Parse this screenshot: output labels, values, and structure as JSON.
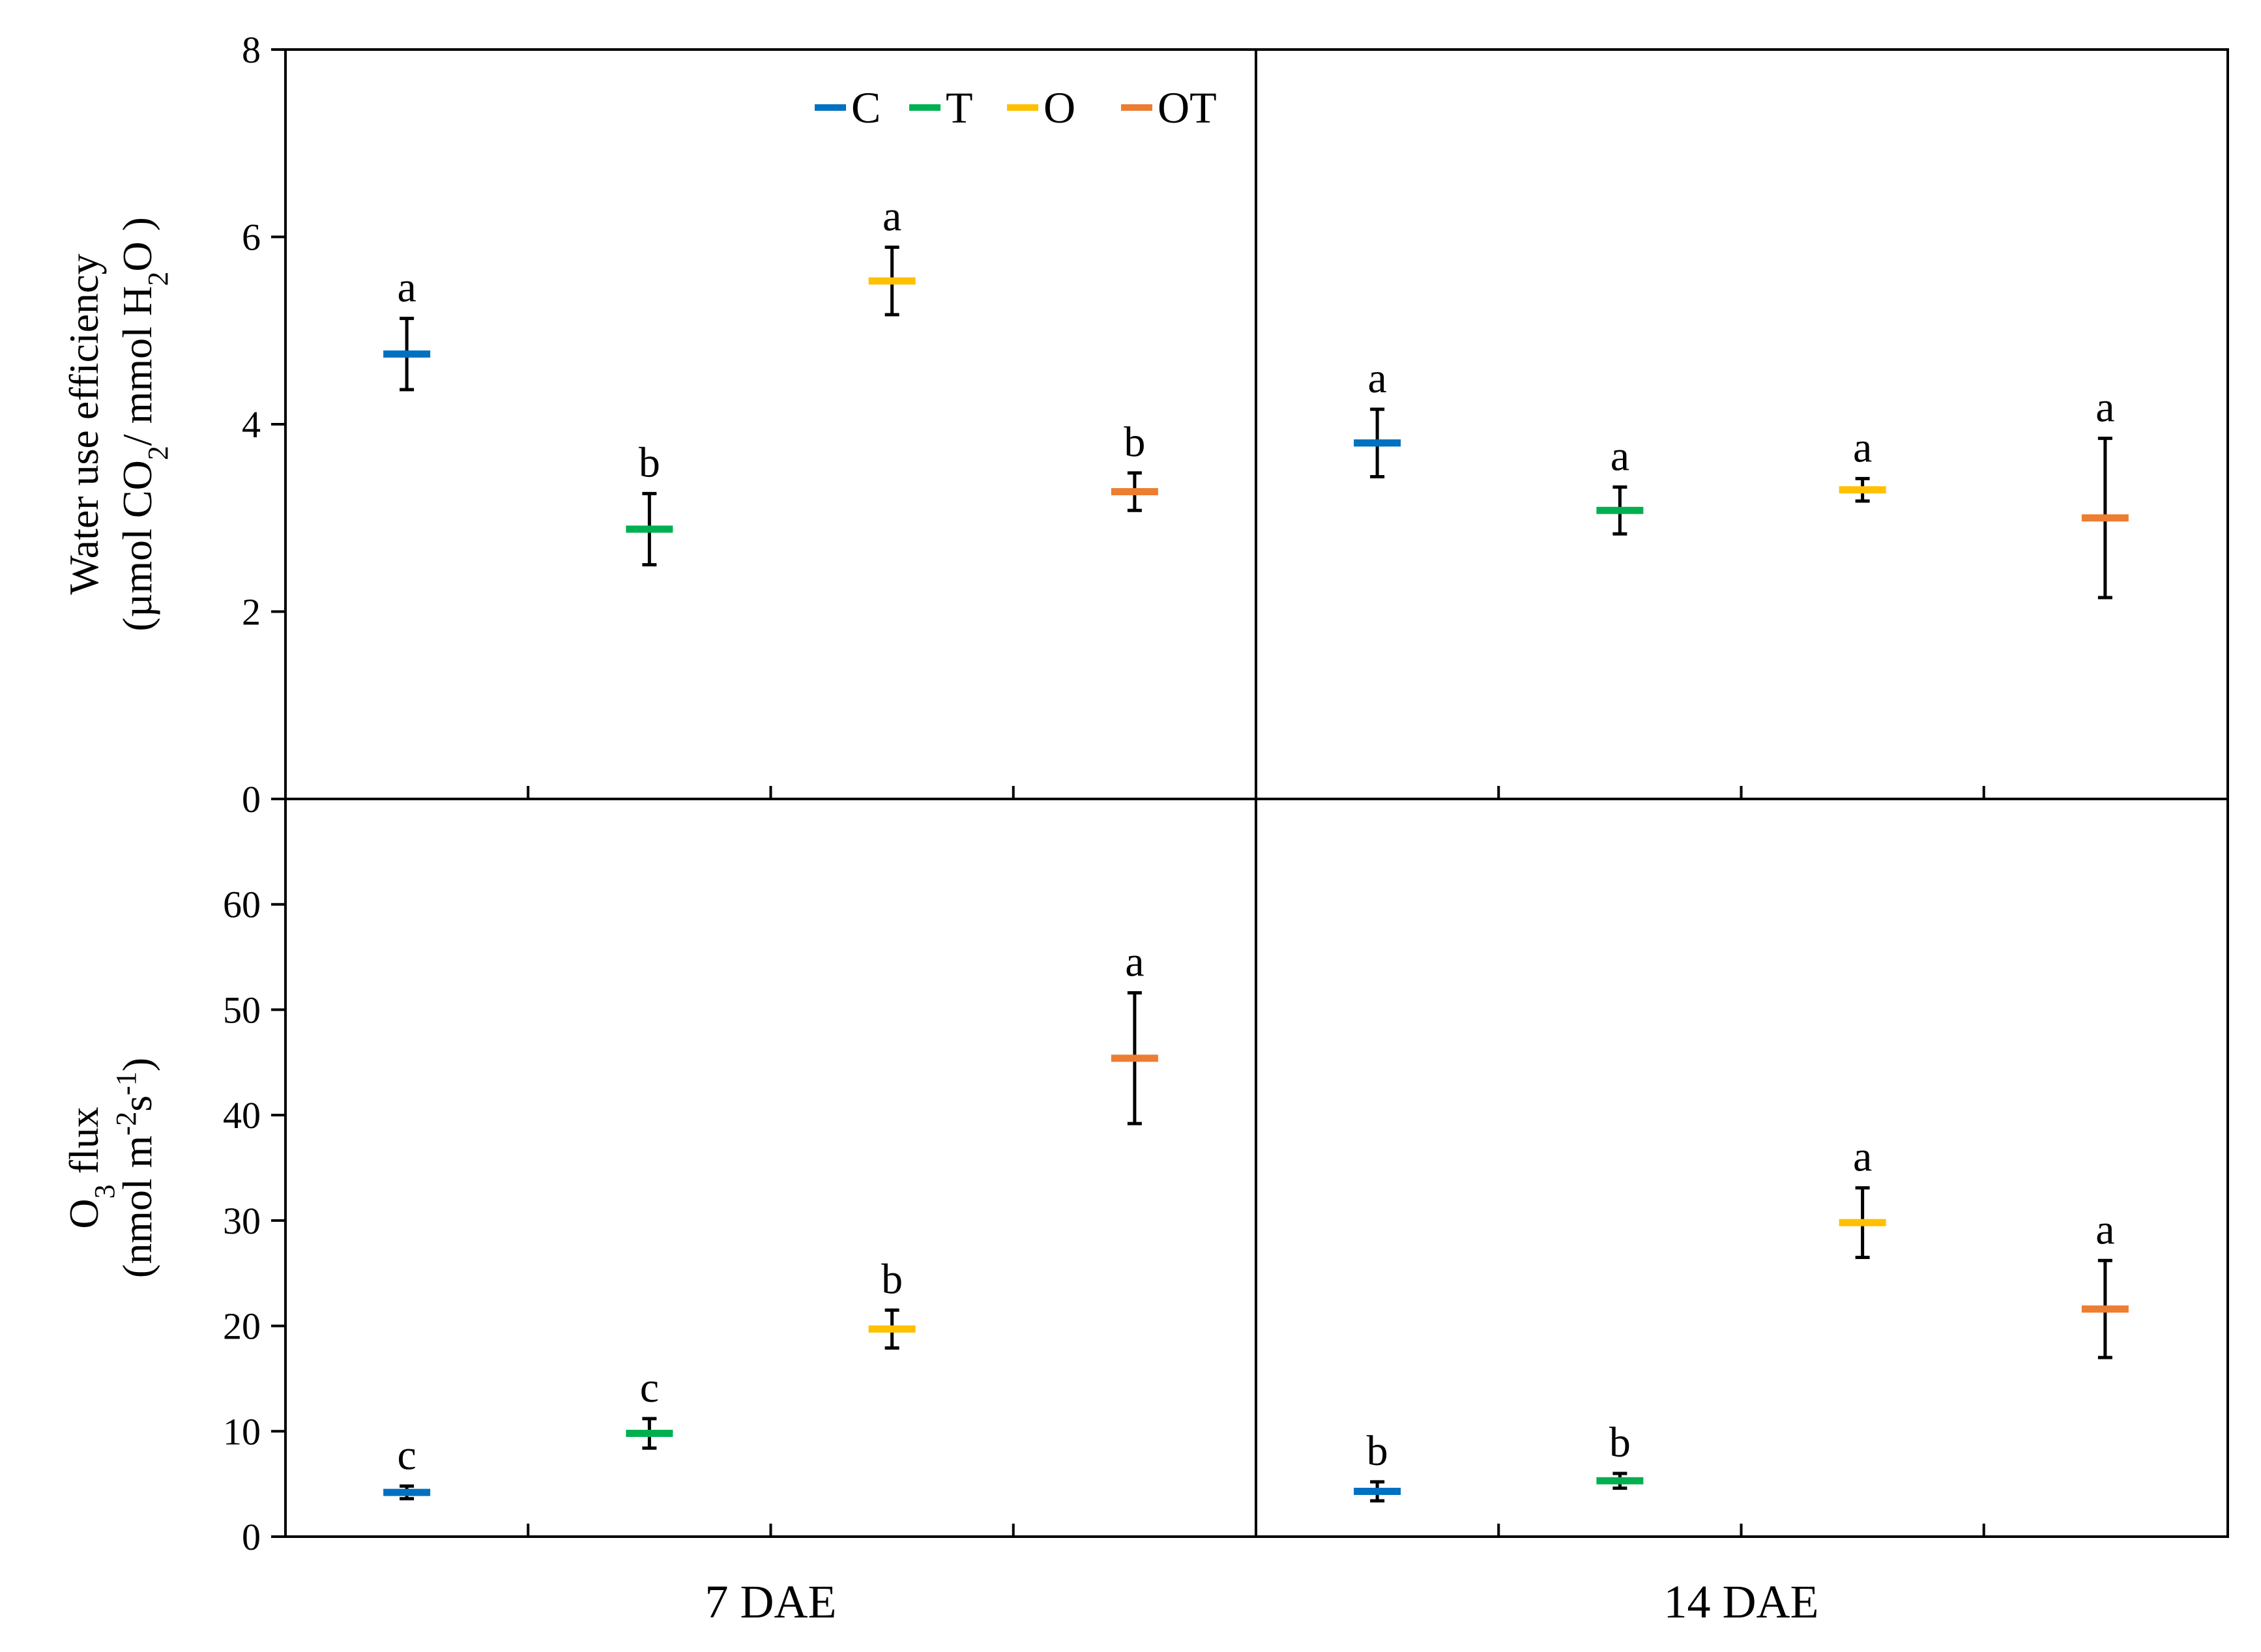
{
  "colors": {
    "C": "#0070C0",
    "T": "#00B050",
    "O": "#FFC000",
    "OT": "#ED7D31",
    "axis": "#000000",
    "error": "#000000"
  },
  "legend": [
    {
      "key": "C",
      "label": "C"
    },
    {
      "key": "T",
      "label": "T"
    },
    {
      "key": "O",
      "label": "O"
    },
    {
      "key": "OT",
      "label": "OT"
    }
  ],
  "x_categories": [
    "7 DAE",
    "14 DAE"
  ],
  "chart_data": [
    {
      "type": "scatter",
      "ylabel_lines": [
        [
          {
            "t": "Water use efficiency"
          }
        ],
        [
          {
            "t": "(µmol CO"
          },
          {
            "t": "2",
            "sub": true
          },
          {
            "t": "/ mmol H"
          },
          {
            "t": "2",
            "sub": true
          },
          {
            "t": "O )"
          }
        ]
      ],
      "ylim": [
        0,
        8
      ],
      "yticks": [
        0,
        2,
        4,
        6,
        8
      ],
      "ytick_labels": [
        "0",
        "2",
        "4",
        "6",
        "8"
      ],
      "groups": [
        "7 DAE",
        "14 DAE"
      ],
      "series": [
        {
          "name": "C",
          "points": [
            {
              "y": 4.75,
              "err": 0.38,
              "sig": "a"
            },
            {
              "y": 3.8,
              "err": 0.36,
              "sig": "a"
            }
          ]
        },
        {
          "name": "T",
          "points": [
            {
              "y": 2.88,
              "err": 0.38,
              "sig": "b"
            },
            {
              "y": 3.08,
              "err": 0.25,
              "sig": "a"
            }
          ]
        },
        {
          "name": "O",
          "points": [
            {
              "y": 5.53,
              "err": 0.36,
              "sig": "a"
            },
            {
              "y": 3.3,
              "err": 0.12,
              "sig": "a"
            }
          ]
        },
        {
          "name": "OT",
          "points": [
            {
              "y": 3.28,
              "err": 0.2,
              "sig": "b"
            },
            {
              "y": 3.0,
              "err": 0.85,
              "sig": "a"
            }
          ]
        }
      ]
    },
    {
      "type": "scatter",
      "ylabel_lines": [
        [
          {
            "t": "O"
          },
          {
            "t": "3",
            "sub": true
          },
          {
            "t": " flux"
          }
        ],
        [
          {
            "t": "(nmol m"
          },
          {
            "t": "-2",
            "sup": true
          },
          {
            "t": "s"
          },
          {
            "t": "-1",
            "sup": true
          },
          {
            "t": ")"
          }
        ]
      ],
      "ylim": [
        0,
        70
      ],
      "yticks": [
        0,
        10,
        20,
        30,
        40,
        50,
        60
      ],
      "ytick_labels": [
        "0",
        "10",
        "20",
        "30",
        "40",
        "50",
        "60"
      ],
      "groups": [
        "7 DAE",
        "14 DAE"
      ],
      "series": [
        {
          "name": "C",
          "points": [
            {
              "y": 4.2,
              "err": 0.6,
              "sig": "c"
            },
            {
              "y": 4.3,
              "err": 0.9,
              "sig": "b"
            }
          ]
        },
        {
          "name": "T",
          "points": [
            {
              "y": 9.8,
              "err": 1.4,
              "sig": "c"
            },
            {
              "y": 5.3,
              "err": 0.7,
              "sig": "b"
            }
          ]
        },
        {
          "name": "O",
          "points": [
            {
              "y": 19.7,
              "err": 1.8,
              "sig": "b"
            },
            {
              "y": 29.8,
              "err": 3.3,
              "sig": "a"
            }
          ]
        },
        {
          "name": "OT",
          "points": [
            {
              "y": 45.4,
              "err": 6.2,
              "sig": "a"
            },
            {
              "y": 21.6,
              "err": 4.6,
              "sig": "a"
            }
          ]
        }
      ]
    }
  ]
}
